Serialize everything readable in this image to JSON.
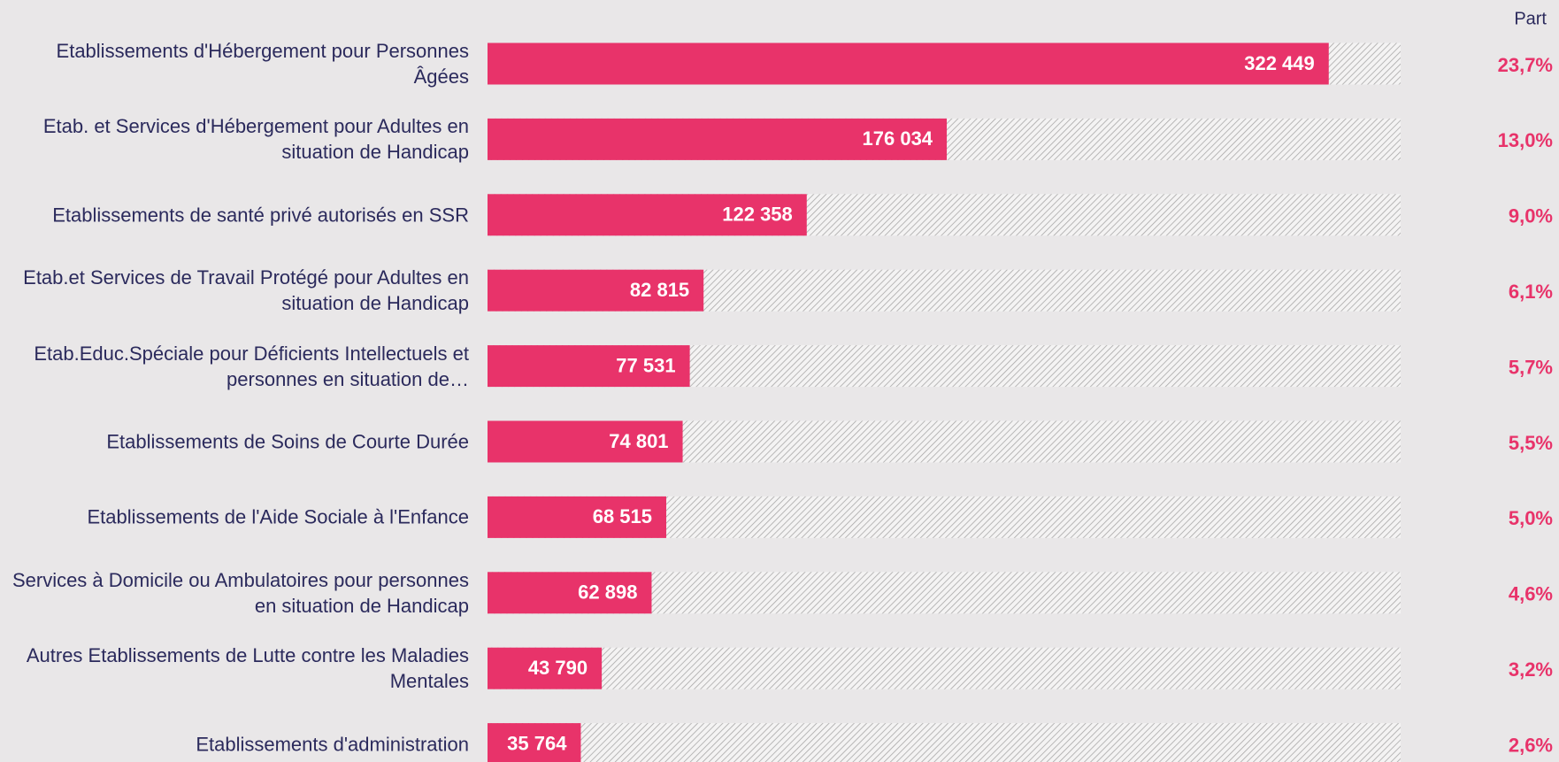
{
  "chart_data": {
    "type": "bar",
    "orientation": "horizontal",
    "categories": [
      "Etablissements d'Hébergement pour Personnes Âgées",
      "Etab. et Services d'Hébergement pour Adultes en situation de Handicap",
      "Etablissements de santé privé autorisés en SSR",
      "Etab.et Services de Travail Protégé pour Adultes en situation de Handicap",
      "Etab.Educ.Spéciale pour Déficients Intellectuels et personnes en situation de…",
      "Etablissements de Soins de Courte Durée",
      "Etablissements de l'Aide Sociale à l'Enfance",
      "Services à Domicile ou Ambulatoires pour personnes en situation de Handicap",
      "Autres Etablissements de Lutte contre les Maladies Mentales",
      "Etablissements d'administration"
    ],
    "values": [
      322449,
      176034,
      122358,
      82815,
      77531,
      74801,
      68515,
      62898,
      43790,
      35764
    ],
    "value_labels": [
      "322 449",
      "176 034",
      "122 358",
      "82 815",
      "77 531",
      "74 801",
      "68 515",
      "62 898",
      "43 790",
      "35 764"
    ],
    "color": "#e8336a",
    "xlim": [
      0,
      350000
    ],
    "share": {
      "title": "Part",
      "values": [
        23.7,
        13.0,
        9.0,
        6.1,
        5.7,
        5.5,
        5.0,
        4.6,
        3.2,
        2.6
      ],
      "value_labels": [
        "23,7%",
        "13,0%",
        "9,0%",
        "6,1%",
        "5,7%",
        "5,5%",
        "5,0%",
        "4,6%",
        "3,2%",
        "2,6%"
      ]
    }
  }
}
